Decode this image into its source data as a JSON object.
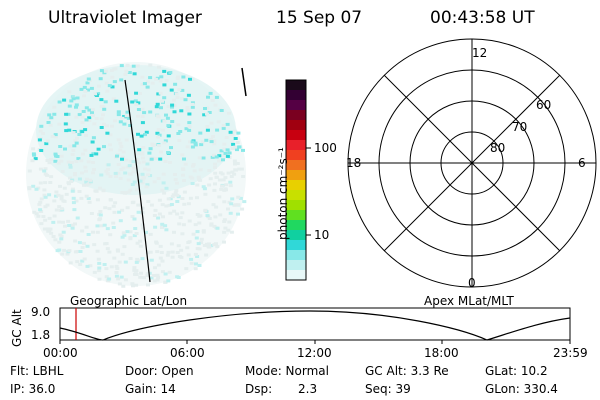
{
  "header": {
    "instrument": "Ultraviolet Imager",
    "date": "15 Sep 07",
    "time": "00:43:58 UT"
  },
  "colorbar": {
    "unit_label": "photon cm⁻²s⁻¹",
    "ticks": [
      "100",
      "10"
    ],
    "colors": [
      "#1a0a1a",
      "#330033",
      "#550044",
      "#7a0020",
      "#a00010",
      "#c80010",
      "#e8202a",
      "#f04020",
      "#f07020",
      "#f0a010",
      "#e8d000",
      "#c8e000",
      "#a0e000",
      "#60e020",
      "#20d860",
      "#10d0a0",
      "#30d8d8",
      "#88e8e8",
      "#c0f0f0",
      "#e8f8f8"
    ]
  },
  "polar": {
    "mlt_labels": [
      "12",
      "18",
      "6",
      "0"
    ],
    "lat_labels": [
      "60",
      "70",
      "80"
    ]
  },
  "map_labels": {
    "left": "Geographic Lat/Lon",
    "right": "Apex MLat/MLT"
  },
  "altitude_plot": {
    "ylabel": "GC Alt",
    "y_ticks": [
      "9.0",
      "1.8"
    ],
    "x_ticks": [
      "00:00",
      "06:00",
      "12:00",
      "18:00",
      "23:59"
    ],
    "marker_color": "#cc0000"
  },
  "info": {
    "flt": "Flt: LBHL",
    "ip": "IP: 36.0",
    "door": "Door: Open",
    "gain": "Gain: 14",
    "mode": "Mode: Normal",
    "dsp_label": "Dsp:",
    "dsp_value": "2.3",
    "gc_alt": "GC Alt: 3.3 Re",
    "seq": "Seq: 39",
    "glat": "GLat:  10.2",
    "glon": "GLon: 330.4"
  }
}
